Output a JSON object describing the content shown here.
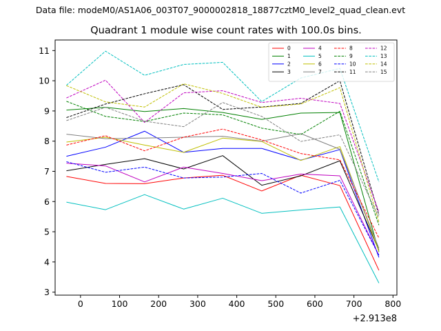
{
  "figure": {
    "suptitle": "Data file: modeM0/AS1A06_003T07_9000002818_18877cztM0_level2_quad_clean.evt"
  },
  "chart_data": {
    "type": "line",
    "title": "Quadrant 1 module wise count rates with 100.0s bins.",
    "xlabel": "",
    "ylabel": "",
    "x_offset_label": "+2.913e8",
    "xlim": [
      -65,
      810
    ],
    "ylim": [
      2.9,
      11.35
    ],
    "xticks": [
      0,
      100,
      200,
      300,
      400,
      500,
      600,
      700,
      800
    ],
    "xtick_labels": [
      "0",
      "100",
      "200",
      "300",
      "400",
      "500",
      "600",
      "700",
      "800"
    ],
    "yticks": [
      3,
      4,
      5,
      6,
      7,
      8,
      9,
      10,
      11
    ],
    "ytick_labels": [
      "3",
      "4",
      "5",
      "6",
      "7",
      "8",
      "9",
      "10",
      "11"
    ],
    "grid": false,
    "legend_position": "top-right",
    "legend_columns": 4,
    "x": [
      -36,
      64,
      164,
      264,
      364,
      464,
      564,
      664,
      764
    ],
    "series": [
      {
        "name": "0",
        "color": "#ff0000",
        "dash": "solid",
        "values": [
          6.83,
          6.6,
          6.59,
          6.78,
          6.87,
          6.35,
          6.87,
          6.53,
          3.72
        ]
      },
      {
        "name": "1",
        "color": "#008000",
        "dash": "solid",
        "values": [
          9.03,
          9.12,
          8.98,
          9.08,
          8.95,
          8.72,
          8.93,
          8.95,
          4.33
        ]
      },
      {
        "name": "2",
        "color": "#0000ff",
        "dash": "solid",
        "values": [
          7.5,
          7.8,
          8.33,
          7.63,
          7.76,
          7.76,
          7.37,
          7.72,
          4.15
        ]
      },
      {
        "name": "3",
        "color": "#000000",
        "dash": "solid",
        "values": [
          7.02,
          7.23,
          7.42,
          7.08,
          7.52,
          6.54,
          6.85,
          7.35,
          4.38
        ]
      },
      {
        "name": "4",
        "color": "#bf00bf",
        "dash": "solid",
        "values": [
          7.27,
          7.18,
          6.65,
          7.14,
          6.93,
          6.69,
          6.91,
          6.85,
          4.22
        ]
      },
      {
        "name": "5",
        "color": "#00bfbf",
        "dash": "solid",
        "values": [
          5.98,
          5.73,
          6.23,
          5.75,
          6.11,
          5.61,
          5.72,
          5.82,
          3.3
        ]
      },
      {
        "name": "6",
        "color": "#bfbf00",
        "dash": "solid",
        "values": [
          7.97,
          8.13,
          7.87,
          7.63,
          8.1,
          7.99,
          7.36,
          7.82,
          4.35
        ]
      },
      {
        "name": "7",
        "color": "#808080",
        "dash": "solid",
        "values": [
          8.23,
          8.08,
          8.1,
          8.13,
          8.16,
          8.0,
          8.25,
          7.73,
          4.45
        ]
      },
      {
        "name": "8",
        "color": "#ff0000",
        "dash": "dashed",
        "values": [
          7.87,
          8.18,
          7.68,
          8.13,
          8.4,
          8.04,
          7.59,
          7.38,
          4.79
        ]
      },
      {
        "name": "9",
        "color": "#008000",
        "dash": "dashed",
        "values": [
          9.32,
          8.82,
          8.65,
          8.93,
          8.87,
          8.43,
          8.22,
          8.99,
          5.22
        ]
      },
      {
        "name": "10",
        "color": "#0000ff",
        "dash": "dashed",
        "values": [
          7.32,
          6.97,
          7.14,
          6.78,
          6.81,
          6.93,
          6.28,
          6.7,
          4.22
        ]
      },
      {
        "name": "11",
        "color": "#000000",
        "dash": "dashed",
        "values": [
          8.78,
          9.23,
          9.57,
          9.87,
          9.05,
          9.13,
          9.25,
          10.0,
          5.55
        ]
      },
      {
        "name": "12",
        "color": "#bf00bf",
        "dash": "dashed",
        "values": [
          9.43,
          10.02,
          8.62,
          9.6,
          9.67,
          9.28,
          9.42,
          9.25,
          5.65
        ]
      },
      {
        "name": "13",
        "color": "#00bfbf",
        "dash": "dashed",
        "values": [
          9.85,
          10.98,
          10.18,
          10.54,
          10.61,
          9.31,
          10.09,
          10.41,
          6.65
        ]
      },
      {
        "name": "14",
        "color": "#bfbf00",
        "dash": "dashed",
        "values": [
          9.84,
          9.3,
          9.13,
          9.9,
          9.58,
          9.12,
          9.23,
          9.77,
          5.32
        ]
      },
      {
        "name": "15",
        "color": "#808080",
        "dash": "dashed",
        "values": [
          8.68,
          9.12,
          8.66,
          8.48,
          9.28,
          8.82,
          7.99,
          8.21,
          5.47
        ]
      }
    ]
  }
}
